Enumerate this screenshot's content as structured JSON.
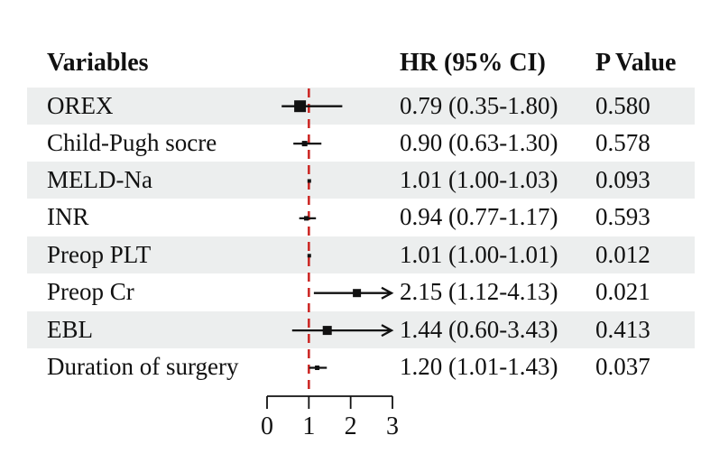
{
  "figure": {
    "description": "Forest plot of hazard ratios with 95% confidence intervals and P values"
  },
  "chart_data": {
    "type": "forest",
    "columns": [
      "Variables",
      "HR (95% CI)",
      "P Value"
    ],
    "rows": [
      {
        "label": "OREX",
        "hr": 0.79,
        "ci_low": 0.35,
        "ci_high": 1.8,
        "hr_ci_text": "0.79 (0.35-1.80)",
        "p_value": "0.580",
        "clipped_high": false,
        "marker_size": 13
      },
      {
        "label": "Child-Pugh socre",
        "hr": 0.9,
        "ci_low": 0.63,
        "ci_high": 1.3,
        "hr_ci_text": "0.90 (0.63-1.30)",
        "p_value": "0.578",
        "clipped_high": false,
        "marker_size": 6
      },
      {
        "label": "MELD-Na",
        "hr": 1.01,
        "ci_low": 1.0,
        "ci_high": 1.03,
        "hr_ci_text": "1.01 (1.00-1.03)",
        "p_value": "0.093",
        "clipped_high": false,
        "marker_size": 4
      },
      {
        "label": "INR",
        "hr": 0.94,
        "ci_low": 0.77,
        "ci_high": 1.17,
        "hr_ci_text": "0.94 (0.77-1.17)",
        "p_value": "0.593",
        "clipped_high": false,
        "marker_size": 5
      },
      {
        "label": "Preop PLT",
        "hr": 1.01,
        "ci_low": 1.0,
        "ci_high": 1.01,
        "hr_ci_text": "1.01 (1.00-1.01)",
        "p_value": "0.012",
        "clipped_high": false,
        "marker_size": 4
      },
      {
        "label": "Preop Cr",
        "hr": 2.15,
        "ci_low": 1.12,
        "ci_high": 4.13,
        "hr_ci_text": "2.15 (1.12-4.13)",
        "p_value": "0.021",
        "clipped_high": true,
        "marker_size": 9
      },
      {
        "label": "EBL",
        "hr": 1.44,
        "ci_low": 0.6,
        "ci_high": 3.43,
        "hr_ci_text": "1.44 (0.60-3.43)",
        "p_value": "0.413",
        "clipped_high": true,
        "marker_size": 10
      },
      {
        "label": "Duration of surgery",
        "hr": 1.2,
        "ci_low": 1.01,
        "ci_high": 1.43,
        "hr_ci_text": "1.20 (1.01-1.43)",
        "p_value": "0.037",
        "clipped_high": false,
        "marker_size": 5
      }
    ],
    "x_axis": {
      "min": 0,
      "max": 3,
      "ticks": [
        "0",
        "1",
        "2",
        "3"
      ],
      "reference_line": 1
    },
    "legend_position": "none",
    "grid": false
  },
  "colors": {
    "reference_line": "#cc2a27",
    "row_shade": "#eceeee",
    "ink": "#111111"
  }
}
